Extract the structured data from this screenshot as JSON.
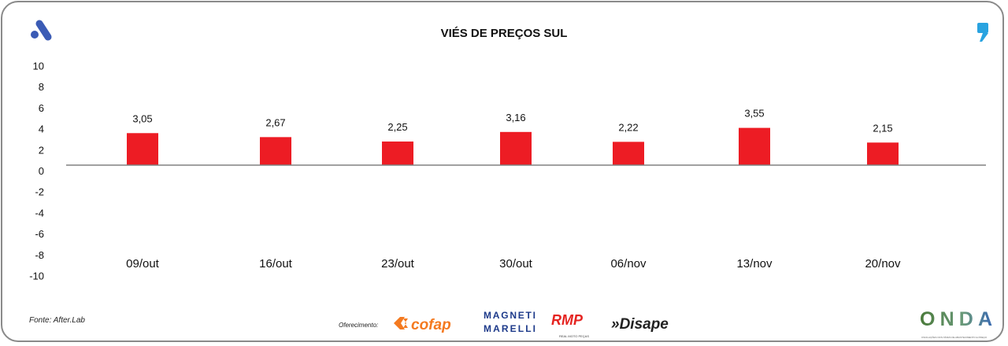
{
  "chart_data": {
    "type": "bar",
    "title": "VIÉS DE PREÇOS SUL",
    "categories": [
      "09/out",
      "16/out",
      "23/out",
      "30/out",
      "06/nov",
      "13/nov",
      "20/nov"
    ],
    "values": [
      3.05,
      2.67,
      2.25,
      3.16,
      2.22,
      3.55,
      2.15
    ],
    "value_labels": [
      "3,05",
      "2,67",
      "2,25",
      "3,16",
      "2,22",
      "3,55",
      "2,15"
    ],
    "ylim": [
      -10,
      10
    ],
    "yticks": [
      10,
      8,
      6,
      4,
      2,
      0,
      -2,
      -4,
      -6,
      -8,
      -10
    ],
    "grid": false,
    "bar_color": "#ed1c24",
    "axis_color": "#808080"
  },
  "footer": {
    "source": "Fonte: After.Lab",
    "offer_label": "Oferecimento:",
    "sponsors": [
      "cofap",
      "MAGNETI MARELLI",
      "RMP",
      "Disape"
    ],
    "brand": "ONDA"
  },
  "colors": {
    "logo_blue": "#3b5bb5",
    "comma_blue": "#29a3e0"
  }
}
